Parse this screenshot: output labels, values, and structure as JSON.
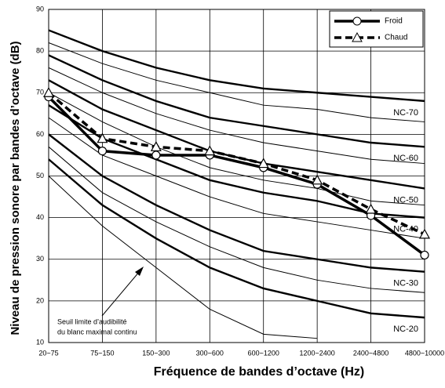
{
  "chart_data": {
    "type": "line",
    "x_label": "Fréquence de bandes d’octave (Hz)",
    "y_label": "Niveau de pression sonore par bandes d’octave (dB)",
    "categories": [
      "20~75",
      "75~150",
      "150~300",
      "300~600",
      "600~1200",
      "1200~2400",
      "2400~4800",
      "4800~10000"
    ],
    "ylim": [
      10,
      90
    ],
    "yticks": [
      10,
      20,
      30,
      40,
      50,
      60,
      70,
      80,
      90
    ],
    "grid": true,
    "series": [
      {
        "name": "Froid",
        "color": "#000000",
        "values": [
          69,
          56,
          55,
          55,
          52,
          48,
          40.5,
          31
        ]
      },
      {
        "name": "Chaud",
        "color": "#000000",
        "values": [
          70,
          59,
          57,
          56,
          53,
          49,
          42,
          36
        ]
      }
    ],
    "curves": [
      {
        "label": "NC-70",
        "values": [
          85,
          80,
          76,
          73,
          71,
          70,
          69,
          68
        ]
      },
      {
        "values": [
          82,
          77,
          73,
          70,
          67,
          66,
          64,
          63
        ]
      },
      {
        "label": "NC-60",
        "values": [
          79,
          73,
          68,
          64,
          62,
          60,
          58,
          57
        ]
      },
      {
        "values": [
          76,
          70,
          65,
          61,
          58,
          56,
          54,
          53
        ]
      },
      {
        "label": "NC-50",
        "values": [
          73,
          66,
          61,
          56,
          53,
          51,
          49,
          47
        ]
      },
      {
        "values": [
          70,
          63,
          57,
          52,
          49,
          47,
          44,
          43
        ]
      },
      {
        "label": "NC-40",
        "values": [
          67,
          59,
          54,
          49,
          46,
          44,
          41,
          40
        ]
      },
      {
        "values": [
          64,
          55,
          50,
          45,
          41,
          39,
          37,
          35
        ]
      },
      {
        "label": "NC-30",
        "values": [
          60,
          50,
          43,
          37,
          32,
          30,
          28,
          27
        ]
      },
      {
        "values": [
          57,
          46,
          39,
          33,
          28,
          25,
          23,
          22
        ]
      },
      {
        "label": "NC-20",
        "values": [
          54,
          43,
          35,
          28,
          23,
          20,
          17,
          16
        ]
      },
      {
        "values": [
          50,
          38,
          28,
          18,
          12,
          11,
          null,
          null
        ]
      }
    ],
    "annotation": [
      "Seuil limite d’audibilité",
      "du blanc maximal continu"
    ]
  }
}
